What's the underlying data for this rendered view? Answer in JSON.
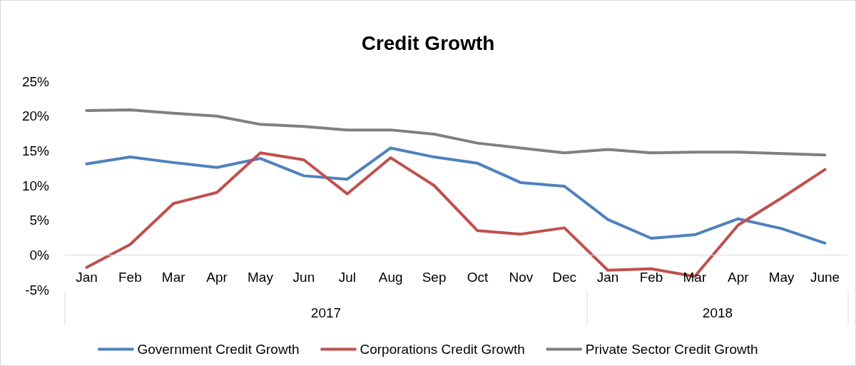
{
  "chart_data": {
    "type": "line",
    "title": "Credit Growth",
    "categories": [
      "Jan",
      "Feb",
      "Mar",
      "Apr",
      "May",
      "Jun",
      "Jul",
      "Aug",
      "Sep",
      "Oct",
      "Nov",
      "Dec",
      "Jan",
      "Feb",
      "Mar",
      "Apr",
      "May",
      "June"
    ],
    "series": [
      {
        "name": "Government Credit Growth",
        "color": "#4f81bd",
        "values": [
          13.1,
          14.1,
          13.3,
          12.6,
          13.9,
          11.4,
          10.9,
          15.4,
          14.1,
          13.2,
          10.4,
          9.9,
          5.1,
          2.4,
          2.9,
          5.2,
          3.8,
          1.7
        ]
      },
      {
        "name": "Corporations Credit Growth",
        "color": "#c0504d",
        "values": [
          -1.8,
          1.5,
          7.4,
          9.0,
          14.7,
          13.7,
          8.8,
          14.0,
          10.0,
          3.5,
          3.0,
          3.9,
          -2.2,
          -2.0,
          -3.1,
          4.3,
          8.2,
          12.3
        ]
      },
      {
        "name": "Private Sector Credit Growth",
        "color": "#808080",
        "values": [
          20.8,
          20.9,
          20.4,
          20.0,
          18.8,
          18.5,
          18.0,
          18.0,
          17.4,
          16.1,
          15.4,
          14.7,
          15.2,
          14.7,
          14.8,
          14.8,
          14.6,
          14.4
        ]
      }
    ],
    "annotations": [
      "2017",
      "2018"
    ],
    "ylim": [
      -5,
      25
    ],
    "yticks": [
      {
        "value": -5,
        "label": "-5%"
      },
      {
        "value": 0,
        "label": "0%"
      },
      {
        "value": 5,
        "label": "5%"
      },
      {
        "value": 10,
        "label": "10%"
      },
      {
        "value": 15,
        "label": "15%"
      },
      {
        "value": 20,
        "label": "20%"
      },
      {
        "value": 25,
        "label": "25%"
      }
    ],
    "grid": false,
    "legend": "bottom",
    "marker": "none",
    "line_style": "solid"
  }
}
